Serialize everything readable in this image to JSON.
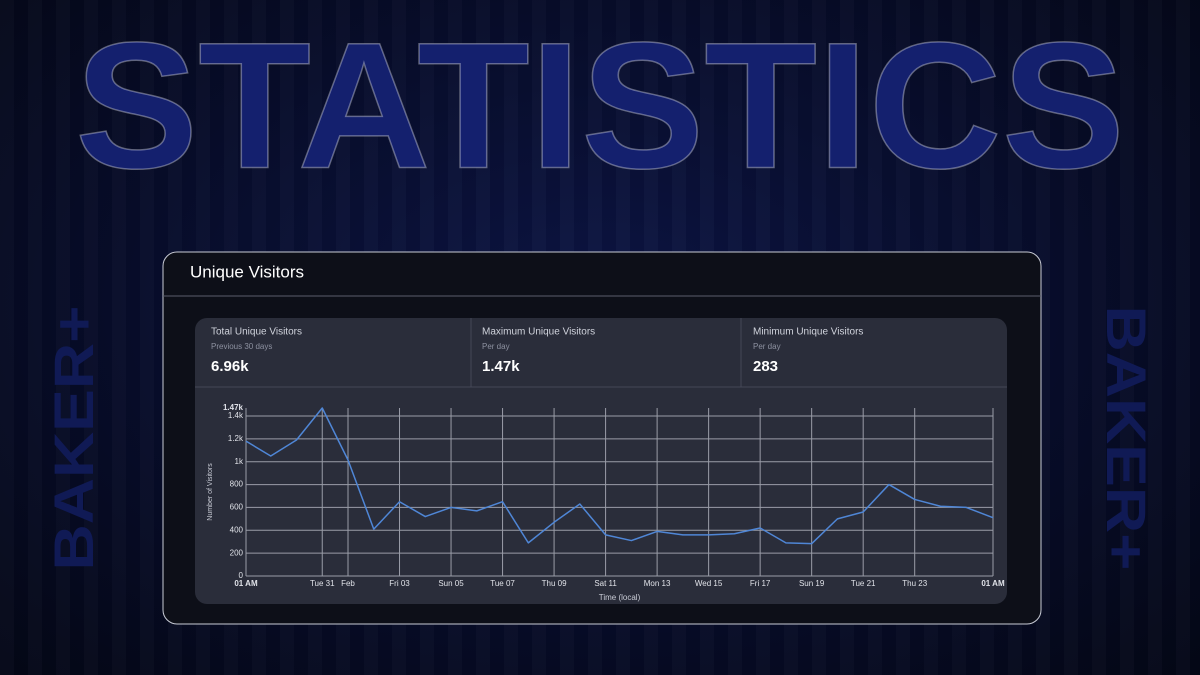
{
  "header": {
    "title": "STATISTICS"
  },
  "brand": {
    "left": "BAKER+",
    "right": "BAKER+"
  },
  "card": {
    "title": "Unique Visitors",
    "stats": [
      {
        "label": "Total Unique Visitors",
        "sublabel": "Previous 30 days",
        "value": "6.96k"
      },
      {
        "label": "Maximum Unique Visitors",
        "sublabel": "Per day",
        "value": "1.47k"
      },
      {
        "label": "Minimum Unique Visitors",
        "sublabel": "Per day",
        "value": "283"
      }
    ]
  },
  "chart_data": {
    "type": "line",
    "xlabel": "Time (local)",
    "ylabel": "Number of Visitors",
    "x": [
      0,
      0.96,
      1.96,
      2.96,
      3.96,
      4.96,
      5.96,
      6.96,
      7.96,
      8.96,
      9.96,
      10.96,
      11.96,
      12.96,
      13.96,
      14.96,
      15.96,
      16.96,
      17.96,
      18.96,
      19.96,
      20.96,
      21.96,
      22.96,
      23.96,
      24.96,
      25.96,
      26.96,
      27.96,
      29
    ],
    "values": [
      1180,
      1050,
      1190,
      1470,
      1015,
      410,
      650,
      520,
      600,
      570,
      650,
      290,
      470,
      630,
      360,
      310,
      390,
      360,
      360,
      370,
      420,
      290,
      283,
      500,
      560,
      800,
      670,
      610,
      600,
      510
    ],
    "color": "#4f86d6",
    "xlim": [
      0,
      29
    ],
    "xticks": [
      {
        "value": 0,
        "label": "01 AM"
      },
      {
        "value": 2.96,
        "label": "Tue 31"
      },
      {
        "value": 3.96,
        "label": "Feb"
      },
      {
        "value": 5.96,
        "label": "Fri 03"
      },
      {
        "value": 7.96,
        "label": "Sun 05"
      },
      {
        "value": 9.96,
        "label": "Tue 07"
      },
      {
        "value": 11.96,
        "label": "Thu 09"
      },
      {
        "value": 13.96,
        "label": "Sat 11"
      },
      {
        "value": 15.96,
        "label": "Mon 13"
      },
      {
        "value": 17.96,
        "label": "Wed 15"
      },
      {
        "value": 19.96,
        "label": "Fri 17"
      },
      {
        "value": 21.96,
        "label": "Sun 19"
      },
      {
        "value": 23.96,
        "label": "Tue 21"
      },
      {
        "value": 25.96,
        "label": "Thu 23"
      },
      {
        "value": 29,
        "label": "01 AM"
      }
    ],
    "ylim": [
      0,
      1470
    ],
    "yticks": [
      0,
      200,
      400,
      600,
      800,
      {
        "value": 1000,
        "label": "1k"
      },
      {
        "value": 1200,
        "label": "1.2k"
      },
      {
        "value": 1400,
        "label": "1.4k"
      },
      {
        "value": 1470,
        "label": "1.47k"
      }
    ],
    "grid": true
  }
}
